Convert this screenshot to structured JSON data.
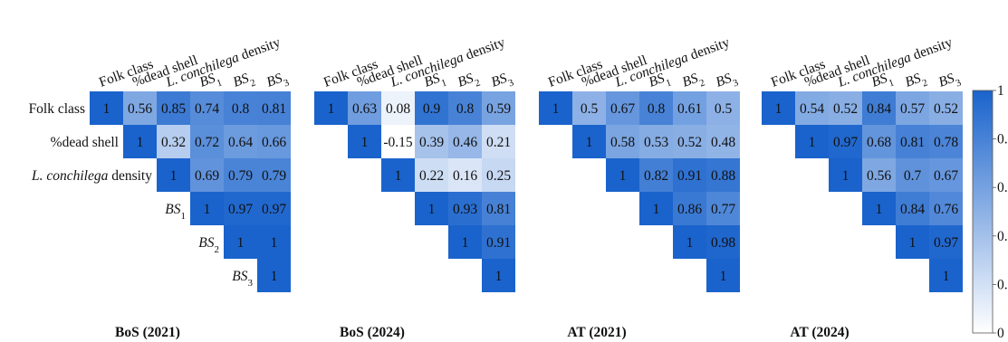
{
  "chart_data": [
    {
      "type": "heatmap",
      "title": "BoS (2021)",
      "labels": [
        "Folk class",
        "%dead shell",
        "L. conchilega density",
        "BS1",
        "BS2",
        "BS3"
      ],
      "matrix": [
        [
          1,
          0.56,
          0.85,
          0.74,
          0.8,
          0.81
        ],
        [
          null,
          1,
          0.32,
          0.72,
          0.64,
          0.66
        ],
        [
          null,
          null,
          1,
          0.69,
          0.79,
          0.79
        ],
        [
          null,
          null,
          null,
          1,
          0.97,
          0.97
        ],
        [
          null,
          null,
          null,
          null,
          1,
          1
        ],
        [
          null,
          null,
          null,
          null,
          null,
          1
        ]
      ]
    },
    {
      "type": "heatmap",
      "title": "BoS (2024)",
      "labels": [
        "Folk class",
        "%dead shell",
        "L. conchilega density",
        "BS1",
        "BS2",
        "BS3"
      ],
      "matrix": [
        [
          1,
          0.63,
          0.08,
          0.9,
          0.8,
          0.59
        ],
        [
          null,
          1,
          -0.15,
          0.39,
          0.46,
          0.21
        ],
        [
          null,
          null,
          1,
          0.22,
          0.16,
          0.25
        ],
        [
          null,
          null,
          null,
          1,
          0.93,
          0.81
        ],
        [
          null,
          null,
          null,
          null,
          1,
          0.91
        ],
        [
          null,
          null,
          null,
          null,
          null,
          1
        ]
      ]
    },
    {
      "type": "heatmap",
      "title": "AT (2021)",
      "labels": [
        "Folk class",
        "%dead shell",
        "L. conchilega density",
        "BS1",
        "BS2",
        "BS3"
      ],
      "matrix": [
        [
          1,
          0.5,
          0.67,
          0.8,
          0.61,
          0.5
        ],
        [
          null,
          1,
          0.58,
          0.53,
          0.52,
          0.48
        ],
        [
          null,
          null,
          1,
          0.82,
          0.91,
          0.88
        ],
        [
          null,
          null,
          null,
          1,
          0.86,
          0.77
        ],
        [
          null,
          null,
          null,
          null,
          1,
          0.98
        ],
        [
          null,
          null,
          null,
          null,
          null,
          1
        ]
      ]
    },
    {
      "type": "heatmap",
      "title": "AT (2024)",
      "labels": [
        "Folk class",
        "%dead shell",
        "L. conchilega density",
        "BS1",
        "BS2",
        "BS3"
      ],
      "matrix": [
        [
          1,
          0.54,
          0.52,
          0.84,
          0.57,
          0.52
        ],
        [
          null,
          1,
          0.97,
          0.68,
          0.81,
          0.78
        ],
        [
          null,
          null,
          1,
          0.56,
          0.7,
          0.67
        ],
        [
          null,
          null,
          null,
          1,
          0.84,
          0.76
        ],
        [
          null,
          null,
          null,
          null,
          1,
          0.97
        ],
        [
          null,
          null,
          null,
          null,
          null,
          1
        ]
      ]
    }
  ],
  "colorbar": {
    "tick_labels": [
      "1",
      "0.",
      "0.",
      "0.",
      "0.",
      "0"
    ],
    "color_low": "#ffffff",
    "color_high": "#1a63cc"
  },
  "row_labels_shown_on": "first panel only",
  "colors": {
    "low": "#ffffff",
    "high": "#1a63cc",
    "text": "#111111"
  }
}
